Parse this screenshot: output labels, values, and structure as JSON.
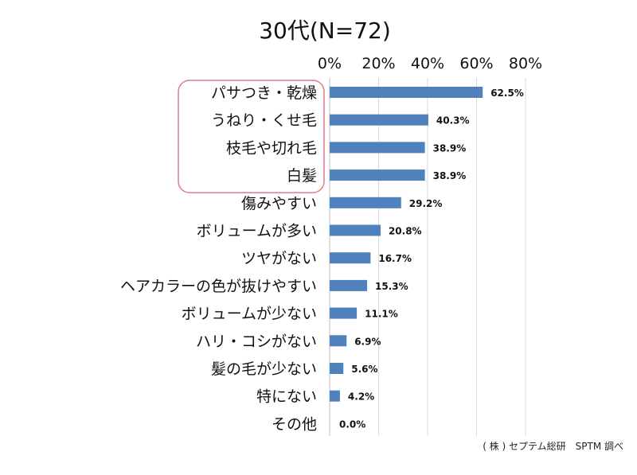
{
  "chart_data": {
    "type": "bar",
    "orientation": "horizontal",
    "title": "30代(N=72)",
    "xlim": [
      0,
      80
    ],
    "x_ticks": [
      "0%",
      "20%",
      "40%",
      "60%",
      "80%"
    ],
    "categories": [
      "パサつき・乾燥",
      "うねり・くせ毛",
      "枝毛や切れ毛",
      "白髪",
      "傷みやすい",
      "ボリュームが多い",
      "ツヤがない",
      "ヘアカラーの色が抜けやすい",
      "ボリュームが少ない",
      "ハリ・コシがない",
      "髪の毛が少ない",
      "特にない",
      "その他"
    ],
    "values": [
      62.5,
      40.3,
      38.9,
      38.9,
      29.2,
      20.8,
      16.7,
      15.3,
      11.1,
      6.9,
      5.6,
      4.2,
      0.0
    ],
    "value_labels": [
      "62.5%",
      "40.3%",
      "38.9%",
      "38.9%",
      "29.2%",
      "20.8%",
      "16.7%",
      "15.3%",
      "11.1%",
      "6.9%",
      "5.6%",
      "4.2%",
      "0.0%"
    ],
    "bar_color": "#4f81bd",
    "highlight_color": "#e07a8c",
    "highlight_categories": [
      0,
      1,
      2,
      3
    ],
    "grid": true,
    "legend": "none",
    "source_note": "( 株 ) セプテム総研　SPTM 調べ"
  }
}
